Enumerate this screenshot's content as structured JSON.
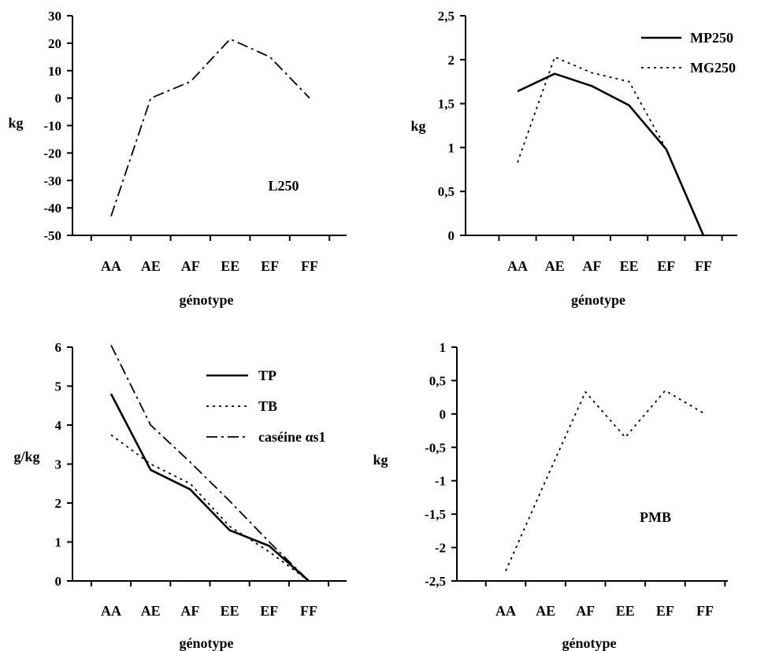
{
  "chart_data": [
    {
      "type": "line",
      "title": "",
      "xlabel": "génotype",
      "ylabel": "kg",
      "ylim": [
        -50,
        30
      ],
      "yticks": [
        30,
        20,
        10,
        0,
        -10,
        -20,
        -30,
        -40,
        -50
      ],
      "ytick_labels": [
        "30",
        "20",
        "10",
        "0",
        "-10",
        "-20",
        "-30",
        "-40",
        "-50"
      ],
      "categories": [
        "AA",
        "AE",
        "AF",
        "EE",
        "EF",
        "FF"
      ],
      "annotation": "L250",
      "legend": "none",
      "grid": false,
      "series": [
        {
          "name": "",
          "style": "dash-dot",
          "color": "#000000",
          "values": [
            -43,
            0,
            6,
            21.5,
            15,
            0
          ]
        }
      ]
    },
    {
      "type": "line",
      "title": "",
      "xlabel": "génotype",
      "ylabel": "kg",
      "ylim": [
        0,
        2.5
      ],
      "yticks": [
        2.5,
        2,
        1.5,
        1,
        0.5,
        0
      ],
      "ytick_labels": [
        "2,5",
        "2",
        "1,5",
        "1",
        "0,5",
        "0"
      ],
      "categories": [
        "AA",
        "AE",
        "AF",
        "EE",
        "EF",
        "FF"
      ],
      "legend": "top-right",
      "grid": false,
      "series": [
        {
          "name": "MP250",
          "style": "solid",
          "color": "#000000",
          "values": [
            1.64,
            1.84,
            1.7,
            1.48,
            0.98,
            0
          ]
        },
        {
          "name": "MG250",
          "style": "dotted",
          "color": "#000000",
          "values": [
            0.83,
            2.03,
            1.85,
            1.75,
            0.98,
            0
          ]
        }
      ]
    },
    {
      "type": "line",
      "title": "",
      "xlabel": "génotype",
      "ylabel": "g/kg",
      "ylim": [
        0,
        6
      ],
      "yticks": [
        6,
        5,
        4,
        3,
        2,
        1,
        0
      ],
      "ytick_labels": [
        "6",
        "5",
        "4",
        "3",
        "2",
        "1",
        "0"
      ],
      "categories": [
        "AA",
        "AE",
        "AF",
        "EE",
        "EF",
        "FF"
      ],
      "legend": "top-right",
      "grid": false,
      "series": [
        {
          "name": "TP",
          "style": "solid",
          "color": "#000000",
          "values": [
            4.8,
            2.85,
            2.35,
            1.3,
            0.9,
            0
          ]
        },
        {
          "name": "TB",
          "style": "dotted",
          "color": "#000000",
          "values": [
            3.75,
            3.0,
            2.5,
            1.4,
            0.75,
            0
          ]
        },
        {
          "name": "caséine αs1",
          "style": "dash-dot",
          "color": "#000000",
          "values": [
            6.05,
            4.0,
            3.05,
            2.05,
            1.0,
            0
          ]
        }
      ]
    },
    {
      "type": "line",
      "title": "",
      "xlabel": "génotype",
      "ylabel": "kg",
      "ylim": [
        -2.5,
        1
      ],
      "yticks": [
        1,
        0.5,
        0,
        -0.5,
        -1,
        -1.5,
        -2,
        -2.5
      ],
      "ytick_labels": [
        "1",
        "0,5",
        "0",
        "-0,5",
        "-1",
        "-1,5",
        "-2",
        "-2,5"
      ],
      "categories": [
        "AA",
        "AE",
        "AF",
        "EE",
        "EF",
        "FF"
      ],
      "annotation": "PMB",
      "legend": "none",
      "grid": false,
      "series": [
        {
          "name": "",
          "style": "dotted",
          "color": "#000000",
          "values": [
            -2.35,
            -1.0,
            0.33,
            -0.35,
            0.35,
            0.0
          ]
        }
      ]
    }
  ]
}
